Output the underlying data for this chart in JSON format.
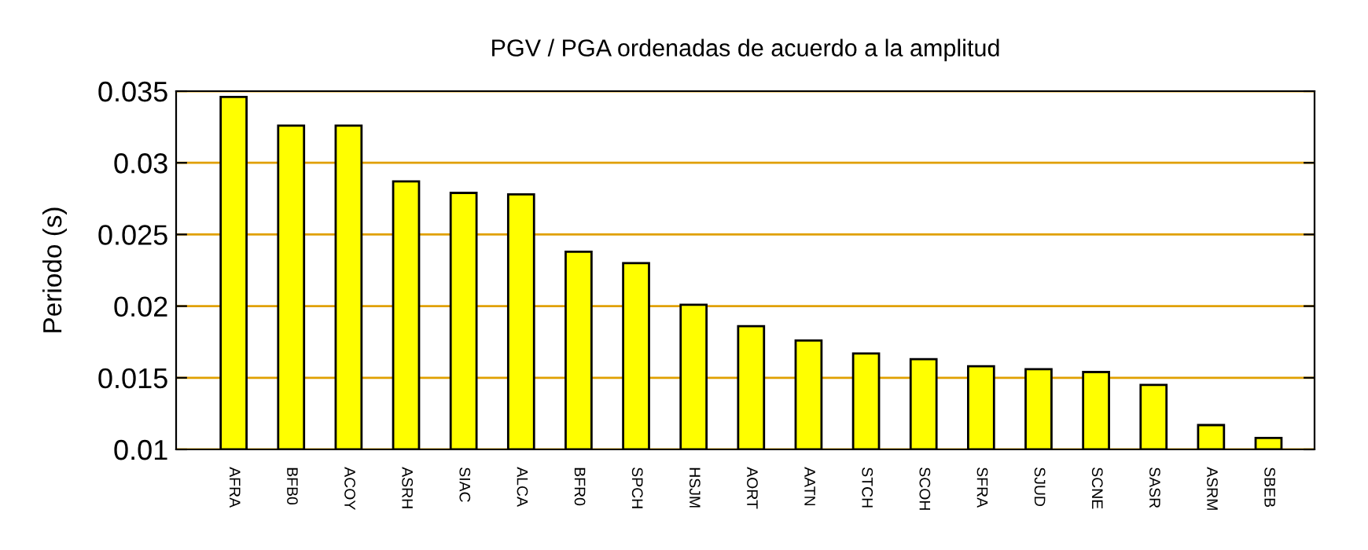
{
  "chart_data": {
    "type": "bar",
    "title": "PGV / PGA ordenadas de acuerdo a la amplitud",
    "ylabel": "Periodo (s)",
    "categories": [
      "AFRA",
      "BFB0",
      "ACOY",
      "ASRH",
      "SIAC",
      "ALCA",
      "BFR0",
      "SPCH",
      "HSJM",
      "AORT",
      "AATN",
      "STCH",
      "SCOH",
      "SFRA",
      "SJUD",
      "SCNE",
      "SASR",
      "ASRM",
      "SBEB"
    ],
    "values": [
      0.0346,
      0.0326,
      0.0326,
      0.0287,
      0.0279,
      0.0278,
      0.0238,
      0.023,
      0.0201,
      0.0186,
      0.0176,
      0.0167,
      0.0163,
      0.0158,
      0.0156,
      0.0154,
      0.0145,
      0.0117,
      0.0108
    ],
    "color": "#ffff00",
    "ylim": [
      0.01,
      0.035
    ],
    "yticks": [
      0.01,
      0.015,
      0.02,
      0.025,
      0.03,
      0.035
    ],
    "grid": "y"
  }
}
